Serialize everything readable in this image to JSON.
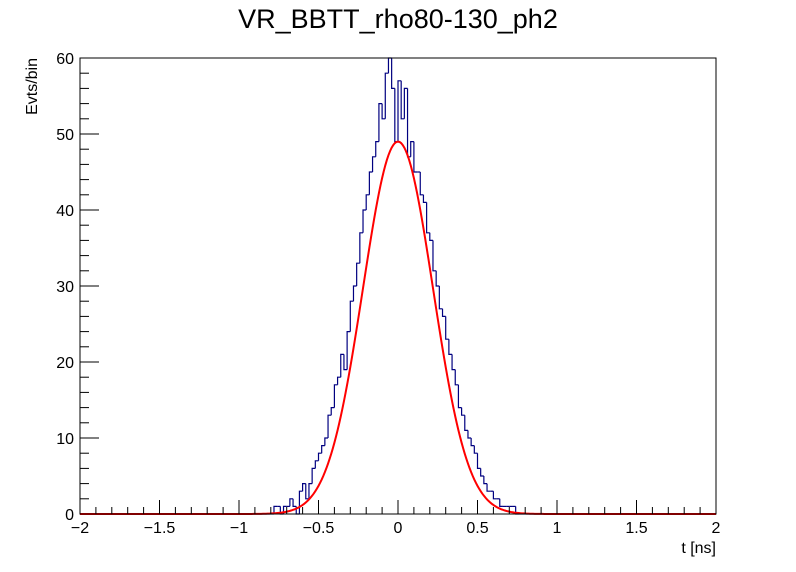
{
  "chart_data": {
    "type": "histogram",
    "title": "VR_BBTT_rho80-130_ph2",
    "xlabel": "t [ns]",
    "ylabel": "Evts/bin",
    "xlim": [
      -2,
      2
    ],
    "ylim": [
      0,
      60
    ],
    "x_ticks": [
      -2,
      -1.5,
      -1,
      -0.5,
      0,
      0.5,
      1,
      1.5,
      2
    ],
    "x_tick_labels": [
      "−2",
      "−1.5",
      "−1",
      "−0.5",
      "0",
      "0.5",
      "1",
      "1.5",
      "2"
    ],
    "y_ticks": [
      0,
      10,
      20,
      30,
      40,
      50,
      60
    ],
    "y_tick_labels": [
      "0",
      "10",
      "20",
      "30",
      "40",
      "50",
      "60"
    ],
    "bin_width": 0.02,
    "bin_centers": [
      -1.99,
      -1.97,
      -1.95,
      -1.93,
      -1.91,
      -1.89,
      -1.87,
      -1.85,
      -1.83,
      -1.81,
      -1.79,
      -1.77,
      -1.75,
      -1.73,
      -1.71,
      -1.69,
      -1.67,
      -1.65,
      -1.63,
      -1.61,
      -1.59,
      -1.57,
      -1.55,
      -1.53,
      -1.51,
      -1.49,
      -1.47,
      -1.45,
      -1.43,
      -1.41,
      -1.39,
      -1.37,
      -1.35,
      -1.33,
      -1.31,
      -1.29,
      -1.27,
      -1.25,
      -1.23,
      -1.21,
      -1.19,
      -1.17,
      -1.15,
      -1.13,
      -1.11,
      -1.09,
      -1.07,
      -1.05,
      -1.03,
      -1.01,
      -0.99,
      -0.97,
      -0.95,
      -0.93,
      -0.91,
      -0.89,
      -0.87,
      -0.85,
      -0.83,
      -0.81,
      -0.79,
      -0.77,
      -0.75,
      -0.73,
      -0.71,
      -0.69,
      -0.67,
      -0.65,
      -0.63,
      -0.61,
      -0.59,
      -0.57,
      -0.55,
      -0.53,
      -0.51,
      -0.49,
      -0.47,
      -0.45,
      -0.43,
      -0.41,
      -0.39,
      -0.37,
      -0.35,
      -0.33,
      -0.31,
      -0.29,
      -0.27,
      -0.25,
      -0.23,
      -0.21,
      -0.19,
      -0.17,
      -0.15,
      -0.13,
      -0.11,
      -0.09,
      -0.07,
      -0.05,
      -0.03,
      -0.01,
      0.01,
      0.03,
      0.05,
      0.07,
      0.09,
      0.11,
      0.13,
      0.15,
      0.17,
      0.19,
      0.21,
      0.23,
      0.25,
      0.27,
      0.29,
      0.31,
      0.33,
      0.35,
      0.37,
      0.39,
      0.41,
      0.43,
      0.45,
      0.47,
      0.49,
      0.51,
      0.53,
      0.55,
      0.57,
      0.59,
      0.61,
      0.63,
      0.65,
      0.67,
      0.69,
      0.71,
      0.73,
      0.75,
      0.77,
      0.79,
      0.81,
      0.83,
      0.85,
      0.87,
      0.89,
      0.91,
      0.93,
      0.95,
      0.97,
      0.99,
      1.01,
      1.03,
      1.05,
      1.07,
      1.09,
      1.11,
      1.13,
      1.15,
      1.17,
      1.19,
      1.21,
      1.23,
      1.25,
      1.27,
      1.29,
      1.31,
      1.33,
      1.35,
      1.37,
      1.39,
      1.41,
      1.43,
      1.45,
      1.47,
      1.49,
      1.51,
      1.53,
      1.55,
      1.57,
      1.59,
      1.61,
      1.63,
      1.65,
      1.67,
      1.69,
      1.71,
      1.73,
      1.75,
      1.77,
      1.79,
      1.81,
      1.83,
      1.85,
      1.87,
      1.89,
      1.91,
      1.93,
      1.95,
      1.97,
      1.99
    ],
    "series": [
      {
        "color": "#000080",
        "values": [
          0,
          0,
          0,
          0,
          0,
          0,
          0,
          0,
          0,
          0,
          0,
          0,
          0,
          0,
          0,
          0,
          0,
          0,
          0,
          0,
          0,
          0,
          0,
          0,
          0,
          0,
          0,
          0,
          0,
          0,
          0,
          0,
          0,
          0,
          0,
          0,
          0,
          0,
          0,
          0,
          0,
          0,
          0,
          0,
          0,
          0,
          0,
          0,
          0,
          0,
          0,
          0,
          0,
          0,
          0,
          0,
          0,
          0,
          0,
          0,
          0,
          1,
          1,
          0,
          1,
          1,
          2,
          1,
          0,
          3,
          4,
          2,
          4,
          6,
          7,
          8,
          9,
          10,
          13,
          14,
          17,
          18,
          21,
          19,
          24,
          28,
          30,
          33,
          37,
          40,
          42,
          45,
          47,
          49,
          54,
          52,
          58,
          60,
          56,
          49,
          57,
          52,
          56,
          47,
          49,
          45,
          45,
          42,
          41,
          37,
          36,
          32,
          30,
          27,
          26,
          23,
          21,
          19,
          17,
          14,
          13,
          11,
          10,
          9,
          8,
          6,
          5,
          4,
          3,
          3,
          2,
          2,
          1,
          1,
          1,
          1,
          1,
          0,
          0,
          0,
          0,
          0,
          0,
          0,
          0,
          0,
          0,
          0,
          0,
          0,
          0,
          0,
          0,
          0,
          0,
          0,
          0,
          0,
          0,
          0,
          0,
          0,
          0,
          0,
          0,
          0,
          0,
          0,
          0,
          0,
          0,
          0,
          0,
          0,
          0,
          0,
          0,
          0,
          0,
          0,
          0,
          0,
          0,
          0,
          0,
          0,
          0,
          0,
          0,
          0,
          0,
          0,
          0,
          0,
          0,
          0,
          0,
          0,
          0
        ]
      },
      {
        "color": "#ff0000",
        "fit": "gaus",
        "constant": 49,
        "mean": 0,
        "sigma": 0.22
      }
    ]
  }
}
